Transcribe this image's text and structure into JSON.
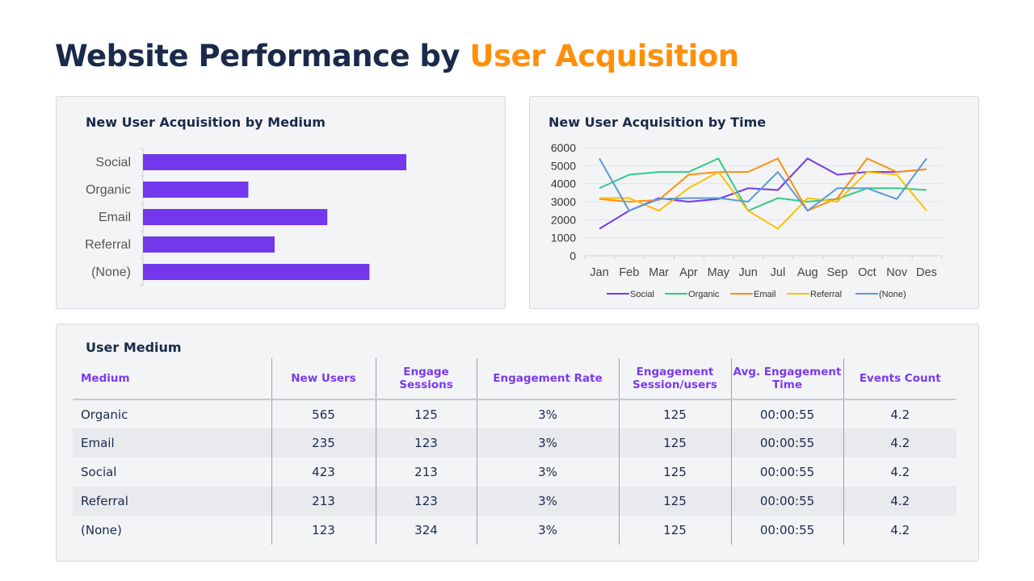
{
  "title": {
    "main": "Website Performance by ",
    "accent": "User Acquisition"
  },
  "bar_card": {
    "title": "New User Acquisition by Medium"
  },
  "line_card": {
    "title": "New User Acquisition by Time"
  },
  "table_card": {
    "title": "User Medium",
    "headers": [
      "Medium",
      "New Users",
      "Engage Sessions",
      "Engagement Rate",
      "Engagement Session/users",
      "Avg. Engagement Time",
      "Events Count"
    ],
    "rows": [
      [
        "Organic",
        "565",
        "125",
        "3%",
        "125",
        "00:00:55",
        "4.2"
      ],
      [
        "Email",
        "235",
        "123",
        "3%",
        "125",
        "00:00:55",
        "4.2"
      ],
      [
        "Social",
        "423",
        "213",
        "3%",
        "125",
        "00:00:55",
        "4.2"
      ],
      [
        "Referral",
        "213",
        "123",
        "3%",
        "125",
        "00:00:55",
        "4.2"
      ],
      [
        "(None)",
        "123",
        "324",
        "3%",
        "125",
        "00:00:55",
        "4.2"
      ]
    ]
  },
  "chart_data": [
    {
      "type": "bar",
      "orientation": "horizontal",
      "title": "New User Acquisition by Medium",
      "categories": [
        "Social",
        "Organic",
        "Email",
        "Referral",
        "(None)"
      ],
      "values": [
        5.0,
        2.0,
        3.5,
        2.5,
        4.3
      ],
      "color": "#7337ec",
      "value_axis_labels": false
    },
    {
      "type": "line",
      "title": "New User Acquisition by Time",
      "categories": [
        "Jan",
        "Feb",
        "Mar",
        "Apr",
        "May",
        "Jun",
        "Jul",
        "Aug",
        "Sep",
        "Oct",
        "Nov",
        "Des"
      ],
      "ylim": [
        0,
        6000
      ],
      "yticks": [
        0,
        1000,
        2000,
        3000,
        4000,
        5000,
        6000
      ],
      "grid": true,
      "legend": "bottom",
      "series": [
        {
          "name": "Social",
          "color": "#7337ec",
          "values": [
            1500,
            2500,
            3200,
            3000,
            3150,
            3750,
            3650,
            5400,
            4500,
            4650,
            4650,
            4800
          ]
        },
        {
          "name": "Organic",
          "color": "#2ecc87",
          "values": [
            3750,
            4500,
            4650,
            4650,
            5400,
            2500,
            3200,
            3000,
            3150,
            3750,
            3750,
            3650
          ]
        },
        {
          "name": "Email",
          "color": "#ff8f0a",
          "values": [
            3150,
            3000,
            3100,
            4500,
            4650,
            4650,
            5400,
            2500,
            3200,
            5400,
            4650,
            4800
          ]
        },
        {
          "name": "Referral",
          "color": "#ffc000",
          "values": [
            3200,
            3200,
            2500,
            3750,
            4650,
            2500,
            1500,
            3200,
            3000,
            4650,
            4500,
            2500
          ]
        },
        {
          "name": "(None)",
          "color": "#5b9bd5",
          "values": [
            5400,
            2500,
            3150,
            3200,
            3200,
            3000,
            4650,
            2500,
            3750,
            3750,
            3150,
            5400
          ]
        }
      ]
    }
  ]
}
